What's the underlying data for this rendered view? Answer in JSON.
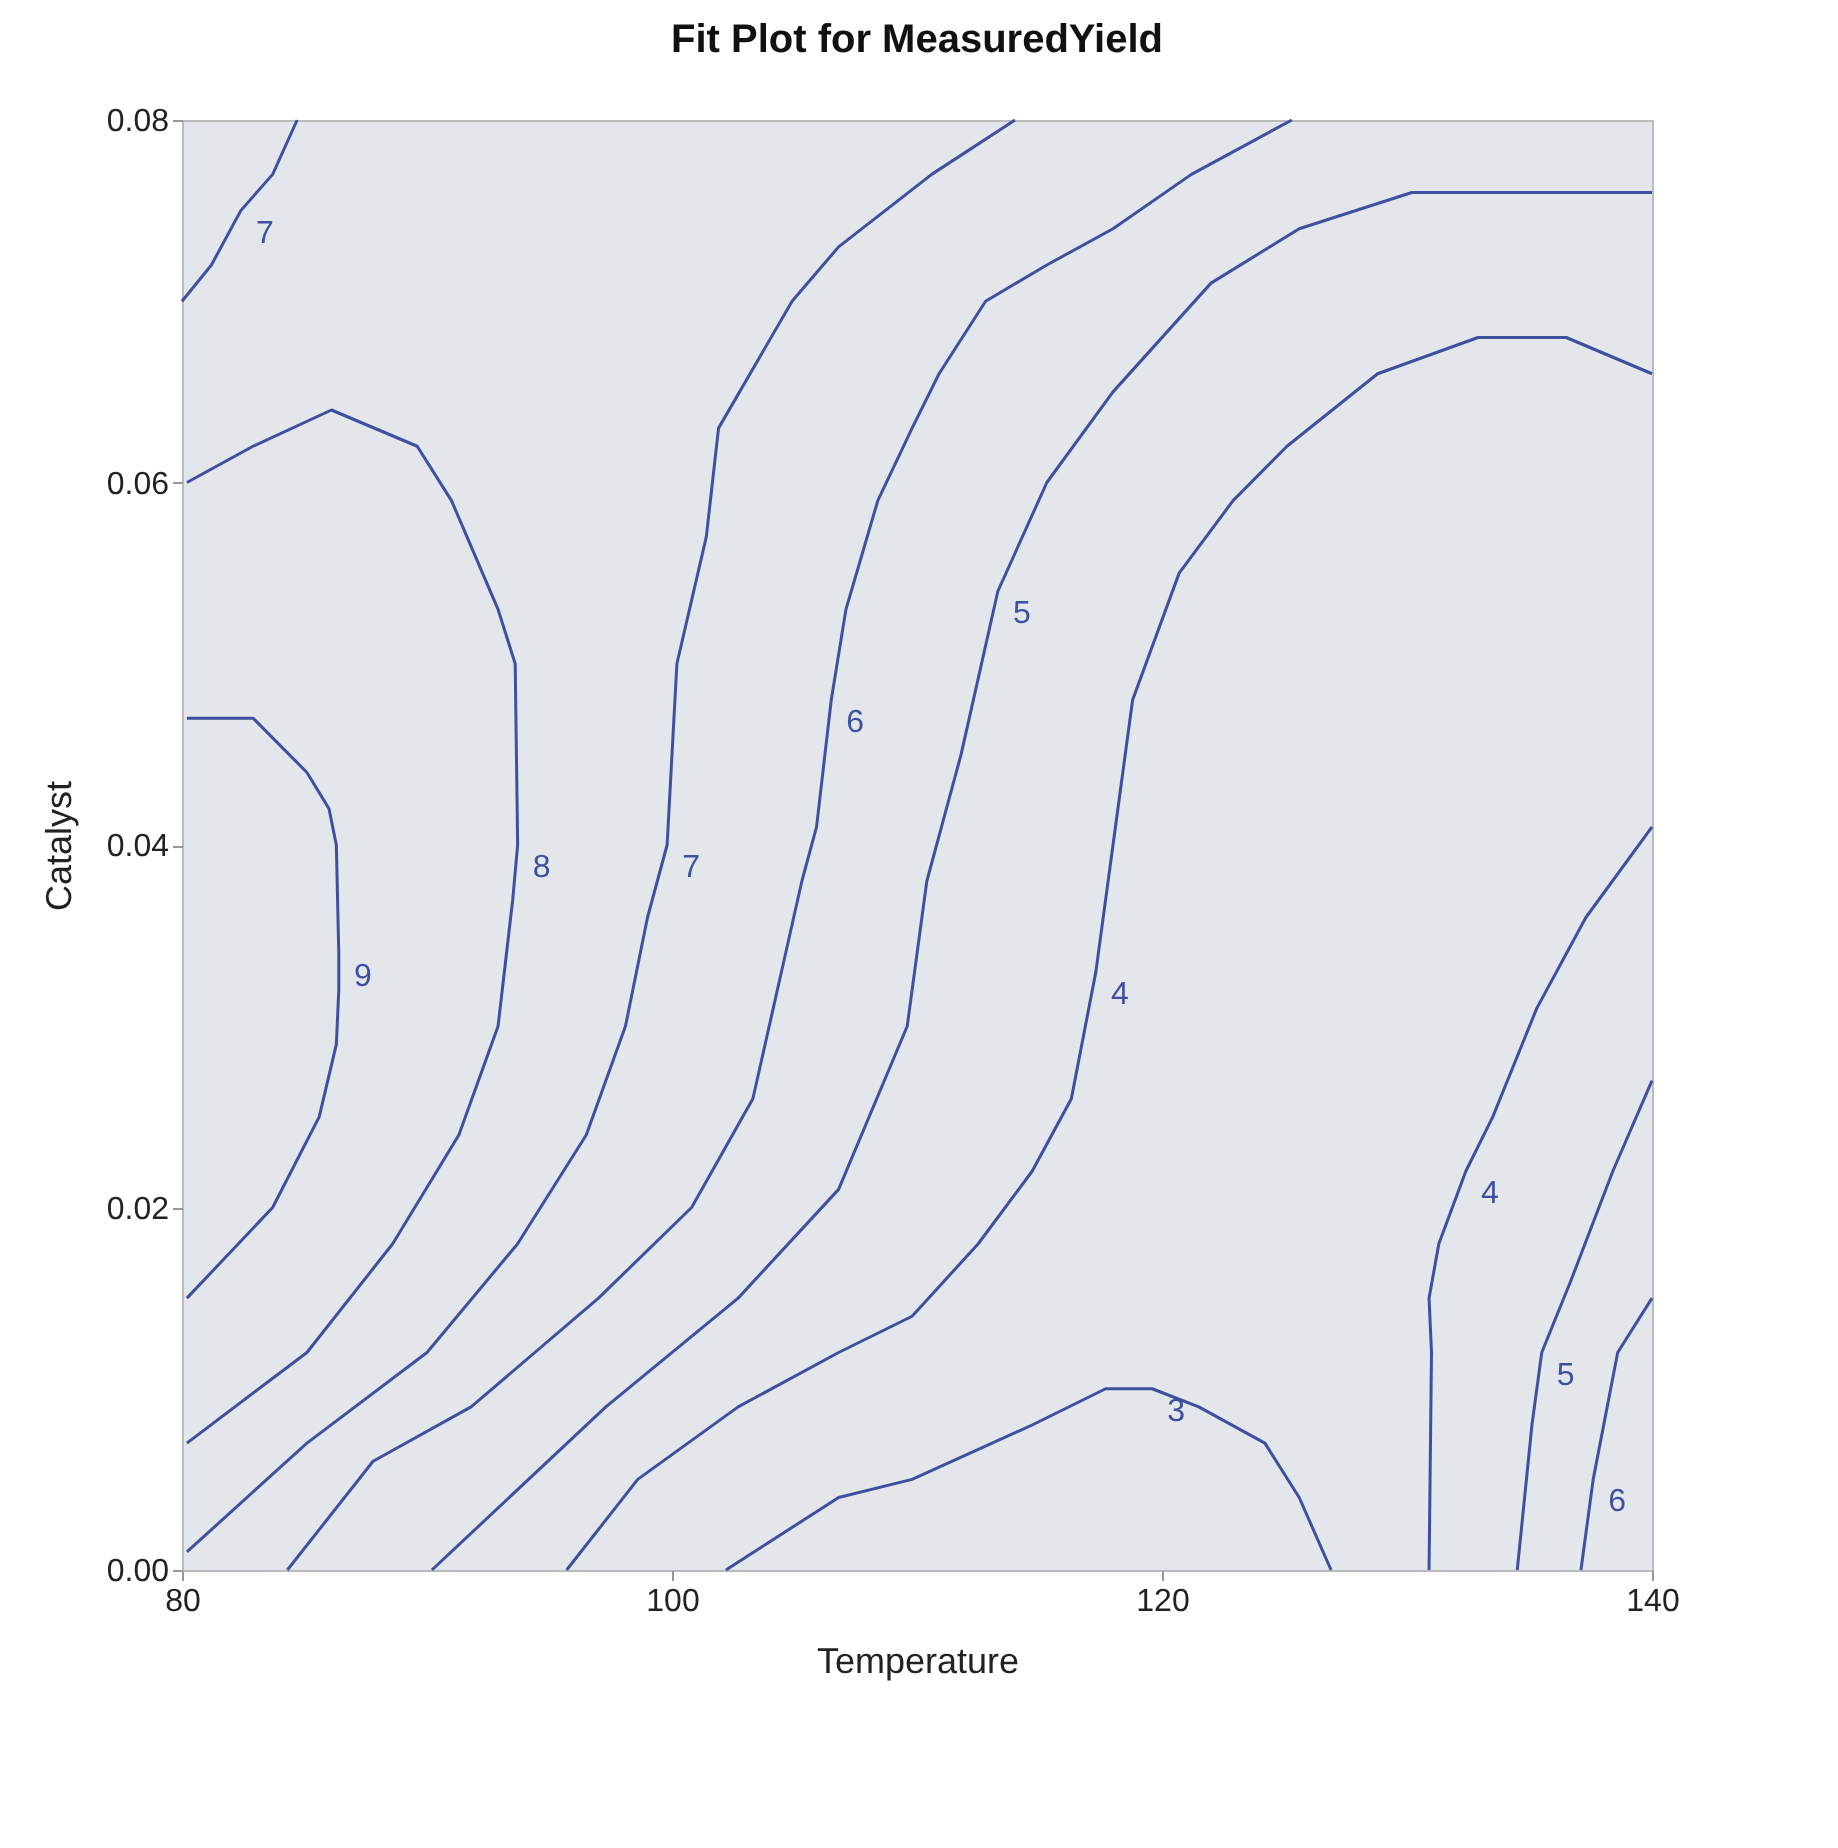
{
  "chart_data": {
    "type": "line",
    "title": "Fit Plot for MeasuredYield",
    "xlabel": "Temperature",
    "ylabel": "Catalyst",
    "xlim": [
      80,
      140
    ],
    "xticks": [
      80,
      100,
      120,
      140
    ],
    "ylim": [
      0,
      0.08
    ],
    "yticks": [
      {
        "value": 0,
        "label": "0.00"
      },
      {
        "value": 0.02,
        "label": "0.02"
      },
      {
        "value": 0.04,
        "label": "0.04"
      },
      {
        "value": 0.06,
        "label": "0.06"
      },
      {
        "value": 0.08,
        "label": "0.08"
      }
    ],
    "marker": "none",
    "line_style": "solid",
    "series": [
      {
        "name": "9",
        "color": "#3f4f9f",
        "x": [
          80.2,
          82.9,
          85.1,
          86.0,
          86.3,
          86.4,
          86.4,
          86.3,
          85.6,
          83.7,
          80.2
        ],
        "values": [
          0.047,
          0.047,
          0.044,
          0.042,
          0.04,
          0.034,
          0.032,
          0.029,
          0.025,
          0.02,
          0.015
        ]
      },
      {
        "name": "8",
        "color": "#3f4fa0",
        "x": [
          80.2,
          82.9,
          86.1,
          89.6,
          91.0,
          92.9,
          93.6,
          93.7,
          93.5,
          92.9,
          91.3,
          88.6,
          85.1,
          80.2
        ],
        "values": [
          0.06,
          0.062,
          0.064,
          0.062,
          0.059,
          0.053,
          0.05,
          0.04,
          0.037,
          0.03,
          0.024,
          0.018,
          0.012,
          0.007
        ]
      },
      {
        "name": "7",
        "color": "#3f4fa1",
        "x": [
          80,
          81.2,
          82.4,
          83.7,
          84.7
        ],
        "values": [
          0.07,
          0.072,
          0.075,
          0.077,
          0.08
        ]
      },
      {
        "name": "7",
        "color": "#3f509f",
        "x": [
          114.0,
          110.6,
          106.8,
          104.9,
          101.9,
          101.4,
          100.2,
          99.8,
          99.0,
          98.1,
          96.5,
          93.7,
          90.0,
          85.1,
          80.2
        ],
        "values": [
          0.08,
          0.077,
          0.073,
          0.07,
          0.063,
          0.057,
          0.05,
          0.04,
          0.036,
          0.03,
          0.024,
          0.018,
          0.012,
          0.007,
          0.001
        ]
      },
      {
        "name": "6",
        "color": "#3f50a0",
        "x": [
          125.3,
          121.2,
          118.0,
          115.3,
          112.8,
          110.9,
          109.8,
          108.4,
          107.1,
          106.5,
          105.9,
          105.3,
          104.3,
          103.3,
          100.8,
          97.0,
          91.8,
          87.8,
          84.3
        ],
        "values": [
          0.08,
          0.077,
          0.074,
          0.072,
          0.07,
          0.066,
          0.063,
          0.059,
          0.053,
          0.048,
          0.041,
          0.038,
          0.032,
          0.026,
          0.02,
          0.015,
          0.009,
          0.006,
          0
        ]
      },
      {
        "name": "5",
        "color": "#3f50a1",
        "x": [
          140,
          136.7,
          133.2,
          130.2,
          125.6,
          122.0,
          118.0,
          115.3,
          113.3,
          111.8,
          111.0,
          110.4,
          109.6,
          106.8,
          102.7,
          97.3,
          90.2
        ],
        "values": [
          0.076,
          0.076,
          0.076,
          0.076,
          0.074,
          0.071,
          0.065,
          0.06,
          0.054,
          0.045,
          0.041,
          0.038,
          0.03,
          0.021,
          0.015,
          0.009,
          0
        ]
      },
      {
        "name": "4",
        "color": "#3e4f9f",
        "x": [
          140,
          136.5,
          132.9,
          128.8,
          125.1,
          122.9,
          120.7,
          118.8,
          118.0,
          117.3,
          116.3,
          114.7,
          112.5,
          109.8,
          106.8,
          102.7,
          98.6,
          95.7
        ],
        "values": [
          0.066,
          0.068,
          0.068,
          0.066,
          0.062,
          0.059,
          0.055,
          0.048,
          0.04,
          0.033,
          0.026,
          0.022,
          0.018,
          0.014,
          0.012,
          0.009,
          0.005,
          0
        ]
      },
      {
        "name": "3",
        "color": "#3e4fa0",
        "x": [
          102.2,
          106.8,
          109.8,
          114.7,
          117.7,
          119.6,
          121.5,
          124.2,
          125.6,
          126.9
        ],
        "values": [
          0,
          0.004,
          0.005,
          0.008,
          0.01,
          0.01,
          0.009,
          0.007,
          0.004,
          0
        ]
      },
      {
        "name": "4",
        "color": "#3e4fa1",
        "x": [
          140,
          137.3,
          135.3,
          133.5,
          132.4,
          131.3,
          130.9,
          131.0,
          130.9
        ],
        "values": [
          0.041,
          0.036,
          0.031,
          0.025,
          0.022,
          0.018,
          0.015,
          0.012,
          0
        ]
      },
      {
        "name": "5",
        "color": "#40509f",
        "x": [
          140,
          138.4,
          136.7,
          135.5,
          135.1,
          134.5
        ],
        "values": [
          0.027,
          0.022,
          0.016,
          0.012,
          0.008,
          0
        ]
      },
      {
        "name": "6",
        "color": "#4050a0",
        "x": [
          140,
          138.6,
          137.6,
          137.1
        ],
        "values": [
          0.015,
          0.012,
          0.005,
          0
        ]
      }
    ]
  }
}
